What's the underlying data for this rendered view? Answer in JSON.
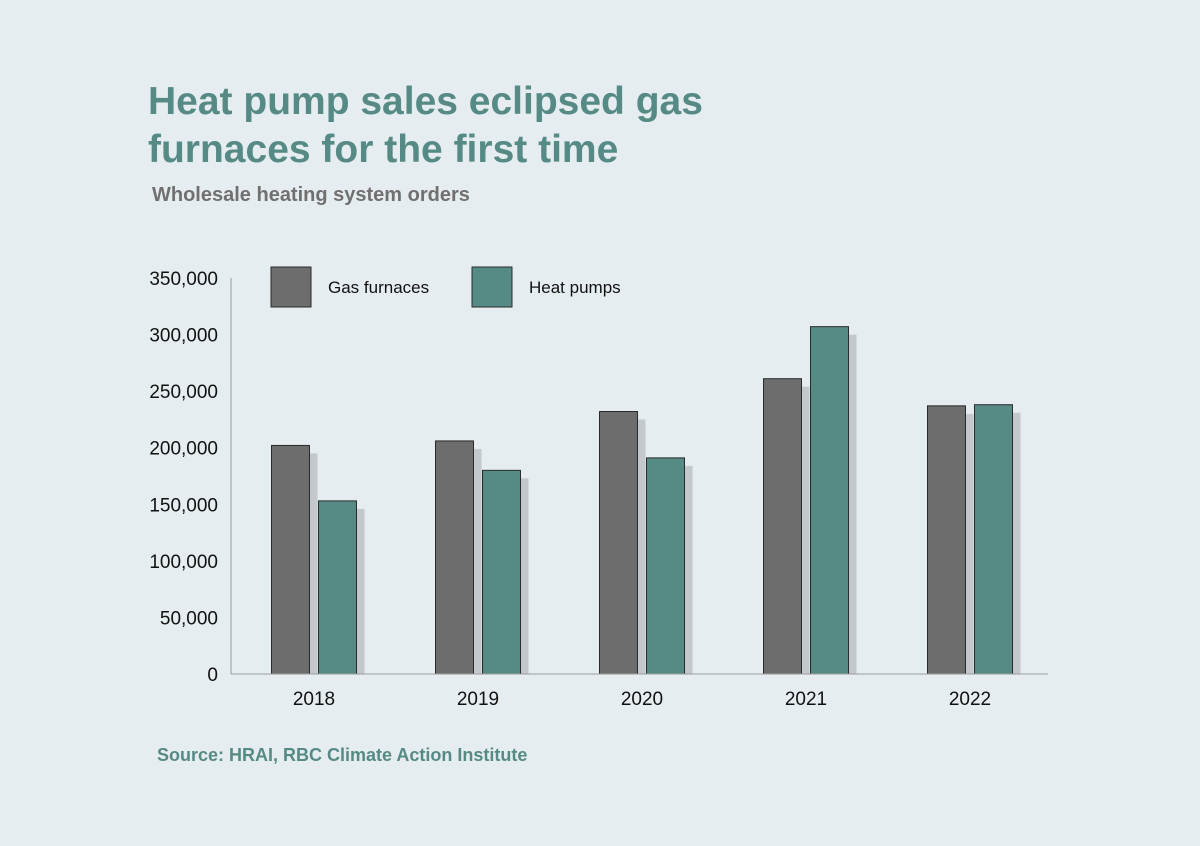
{
  "title_lines": [
    "Heat pump sales eclipsed gas",
    "furnaces for the first time"
  ],
  "subtitle": "Wholesale heating system orders",
  "source": "Source: HRAI, RBC Climate Action Institute",
  "colors": {
    "background": "#e6edf0",
    "accent": "#568a85",
    "gas_furnaces": "#6d6d6d",
    "heat_pumps": "#568a85",
    "shadow": "#c3c8cc",
    "axis": "#9a9a9a"
  },
  "chart_data": {
    "type": "bar",
    "title": "Heat pump sales eclipsed gas furnaces for the first time",
    "subtitle": "Wholesale heating system orders",
    "xlabel": "",
    "ylabel": "",
    "categories": [
      "2018",
      "2019",
      "2020",
      "2021",
      "2022"
    ],
    "series": [
      {
        "name": "Gas furnaces",
        "color": "#6d6d6d",
        "values": [
          202000,
          206000,
          232000,
          261000,
          237000
        ]
      },
      {
        "name": "Heat pumps",
        "color": "#568a85",
        "values": [
          153000,
          180000,
          191000,
          307000,
          238000
        ]
      }
    ],
    "ylim": [
      0,
      350000
    ],
    "yticks": [
      0,
      50000,
      100000,
      150000,
      200000,
      250000,
      300000,
      350000
    ],
    "ytick_labels": [
      "0",
      "50,000",
      "100,000",
      "150,000",
      "200,000",
      "250,000",
      "300,000",
      "350,000"
    ],
    "grid": false,
    "legend": "top-left"
  }
}
